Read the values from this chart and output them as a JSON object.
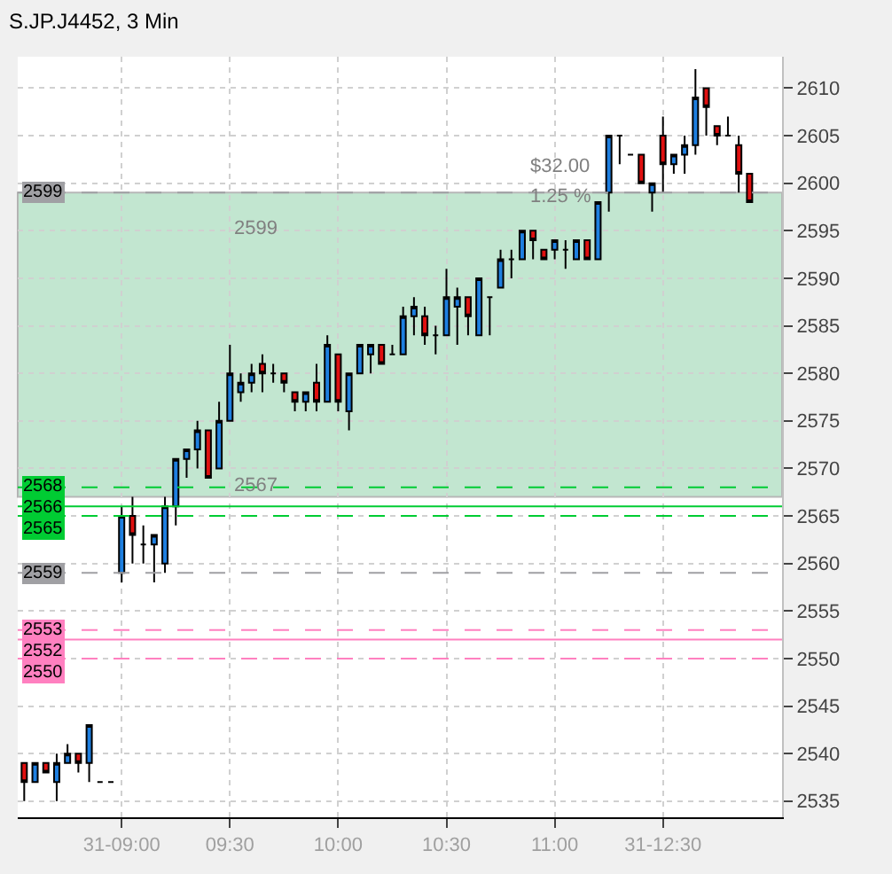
{
  "chart_data": {
    "type": "candlestick",
    "title": "S.JP.J4452, 3 Min",
    "categories": [
      null,
      null,
      null,
      null,
      null,
      null,
      null,
      null,
      null,
      "31-09:00",
      null,
      null,
      null,
      null,
      null,
      null,
      null,
      null,
      null,
      "09:30",
      null,
      null,
      null,
      null,
      null,
      null,
      null,
      null,
      null,
      "10:00",
      null,
      null,
      null,
      null,
      null,
      null,
      null,
      null,
      null,
      "10:30",
      null,
      null,
      null,
      null,
      null,
      null,
      null,
      null,
      null,
      "11:00",
      null,
      null,
      null,
      null,
      null,
      null,
      null,
      null,
      null,
      "31-12:30",
      null,
      null,
      null,
      null,
      null,
      null,
      null,
      null
    ],
    "ohlc": [
      [
        2539,
        2539,
        2535,
        2537
      ],
      [
        2537,
        2539,
        2537,
        2539
      ],
      [
        2539,
        2539,
        2538,
        2538
      ],
      [
        2537,
        2540,
        2535,
        2539
      ],
      [
        2539,
        2541,
        2539,
        2540
      ],
      [
        2540,
        2540,
        2538,
        2539
      ],
      [
        2539,
        2543,
        2537,
        2543
      ],
      [
        2537,
        2537,
        2537,
        2537
      ],
      [
        2537,
        2537,
        2537,
        2537
      ],
      [
        2559,
        2566,
        2558,
        2565
      ],
      [
        2565,
        2567,
        2560,
        2563
      ],
      [
        2562,
        2564,
        2560,
        2562
      ],
      [
        2562,
        2563,
        2558,
        2563
      ],
      [
        2560,
        2567,
        2559,
        2566
      ],
      [
        2566,
        2571,
        2564,
        2571
      ],
      [
        2571,
        2572,
        2569,
        2572
      ],
      [
        2572,
        2575,
        2570,
        2574
      ],
      [
        2574,
        2574,
        2569,
        2569
      ],
      [
        2570,
        2577,
        2570,
        2575
      ],
      [
        2575,
        2583,
        2575,
        2580
      ],
      [
        2578,
        2580,
        2577,
        2579
      ],
      [
        2579,
        2581,
        2578,
        2580
      ],
      [
        2581,
        2582,
        2578,
        2580
      ],
      [
        2580,
        2581,
        2579,
        2580
      ],
      [
        2580,
        2580,
        2578,
        2579
      ],
      [
        2578,
        2578,
        2576,
        2577
      ],
      [
        2577,
        2578,
        2576,
        2578
      ],
      [
        2579,
        2581,
        2576,
        2577
      ],
      [
        2577,
        2584,
        2577,
        2583
      ],
      [
        2582,
        2582,
        2576,
        2577
      ],
      [
        2576,
        2580,
        2574,
        2580
      ],
      [
        2580,
        2583,
        2580,
        2583
      ],
      [
        2582,
        2583,
        2580,
        2583
      ],
      [
        2583,
        2583,
        2581,
        2581
      ],
      [
        2582,
        2583,
        2582,
        2582
      ],
      [
        2582,
        2587,
        2582,
        2586
      ],
      [
        2586,
        2588,
        2584,
        2587
      ],
      [
        2586,
        2587,
        2583,
        2584
      ],
      [
        2584,
        2585,
        2582,
        2584
      ],
      [
        2584,
        2591,
        2584,
        2588
      ],
      [
        2587,
        2589,
        2583,
        2588
      ],
      [
        2588,
        2588,
        2584,
        2586
      ],
      [
        2584,
        2590,
        2584,
        2590
      ],
      [
        2588,
        2588,
        2584,
        2588
      ],
      [
        2589,
        2593,
        2589,
        2592
      ],
      [
        2592,
        2593,
        2590,
        2592
      ],
      [
        2592,
        2595,
        2592,
        2595
      ],
      [
        2595,
        2595,
        2592,
        2594
      ],
      [
        2593,
        2593,
        2592,
        2592
      ],
      [
        2593,
        2594,
        2592,
        2594
      ],
      [
        2593,
        2594,
        2591,
        2593
      ],
      [
        2592,
        2594,
        2592,
        2594
      ],
      [
        2594,
        2594,
        2592,
        2592
      ],
      [
        2592,
        2598,
        2592,
        2598
      ],
      [
        2599,
        2605,
        2597,
        2605
      ],
      [
        2605,
        2605,
        2602,
        2605
      ],
      [
        2603,
        2603,
        2603,
        2603
      ],
      [
        2603,
        2603,
        2600,
        2600
      ],
      [
        2599,
        2600,
        2597,
        2600
      ],
      [
        2605,
        2607,
        2599,
        2602
      ],
      [
        2602,
        2603,
        2601,
        2603
      ],
      [
        2603,
        2605,
        2601,
        2604
      ],
      [
        2604,
        2612,
        2603,
        2609
      ],
      [
        2610,
        2610,
        2605,
        2608
      ],
      [
        2606,
        2606,
        2604,
        2605
      ],
      [
        2605,
        2607,
        2605,
        2605
      ],
      [
        2604,
        2605,
        2599,
        2601
      ],
      [
        2601,
        2601,
        2598,
        2598
      ]
    ],
    "colors": [
      "#e01010",
      "#1e7fe0",
      "#e01010",
      "#1e7fe0",
      "#1e7fe0",
      "#e01010",
      "#1e7fe0",
      "#000000",
      "#000000",
      "#1e7fe0",
      "#e01010",
      "#000000",
      "#1e7fe0",
      "#1e7fe0",
      "#1e7fe0",
      "#1e7fe0",
      "#1e7fe0",
      "#e01010",
      "#1e7fe0",
      "#1e7fe0",
      "#1e7fe0",
      "#1e7fe0",
      "#e01010",
      "#000000",
      "#e01010",
      "#e01010",
      "#1e7fe0",
      "#e01010",
      "#1e7fe0",
      "#e01010",
      "#1e7fe0",
      "#1e7fe0",
      "#1e7fe0",
      "#e01010",
      "#000000",
      "#1e7fe0",
      "#1e7fe0",
      "#e01010",
      "#000000",
      "#1e7fe0",
      "#1e7fe0",
      "#e01010",
      "#1e7fe0",
      "#000000",
      "#1e7fe0",
      "#000000",
      "#1e7fe0",
      "#e01010",
      "#e01010",
      "#1e7fe0",
      "#000000",
      "#1e7fe0",
      "#e01010",
      "#1e7fe0",
      "#1e7fe0",
      "#000000",
      "#000000",
      "#e01010",
      "#1e7fe0",
      "#e01010",
      "#1e7fe0",
      "#1e7fe0",
      "#1e7fe0",
      "#e01010",
      "#e01010",
      "#000000",
      "#e01010",
      "#e01010"
    ],
    "ylim": [
      2533.3,
      2613.3
    ],
    "yticks": [
      2535,
      2540,
      2545,
      2550,
      2555,
      2560,
      2565,
      2570,
      2575,
      2580,
      2585,
      2590,
      2595,
      2600,
      2605,
      2610
    ],
    "grid": true,
    "bands": [
      {
        "axis": "y",
        "from": 2567,
        "to": 2599,
        "color": "#9ad6b2"
      }
    ],
    "ref_lines": [
      {
        "axis": "y",
        "value": 2599,
        "label": "2599",
        "color": "#a0a0a4",
        "line_style": "dashed"
      },
      {
        "axis": "y",
        "value": 2568,
        "label": "2568",
        "color": "#00cc33",
        "line_style": "dashed"
      },
      {
        "axis": "y",
        "value": 2566,
        "label": "2566",
        "color": "#00cc33",
        "line_style": "solid"
      },
      {
        "axis": "y",
        "value": 2565,
        "label": "2565",
        "color": "#00cc33",
        "line_style": "dashed"
      },
      {
        "axis": "y",
        "value": 2559,
        "label": "2559",
        "color": "#a0a0a4",
        "line_style": "dashed"
      },
      {
        "axis": "y",
        "value": 2553,
        "label": "2553",
        "color": "#ff80c0",
        "line_style": "dashed"
      },
      {
        "axis": "y",
        "value": 2552,
        "label": "2552",
        "color": "#ff80c0",
        "line_style": "solid"
      },
      {
        "axis": "y",
        "value": 2550,
        "label": "2550",
        "color": "#ff80c0",
        "line_style": "dashed"
      }
    ],
    "annotations": [
      "2599",
      "2567",
      "$32.00",
      "1.25 %"
    ]
  }
}
